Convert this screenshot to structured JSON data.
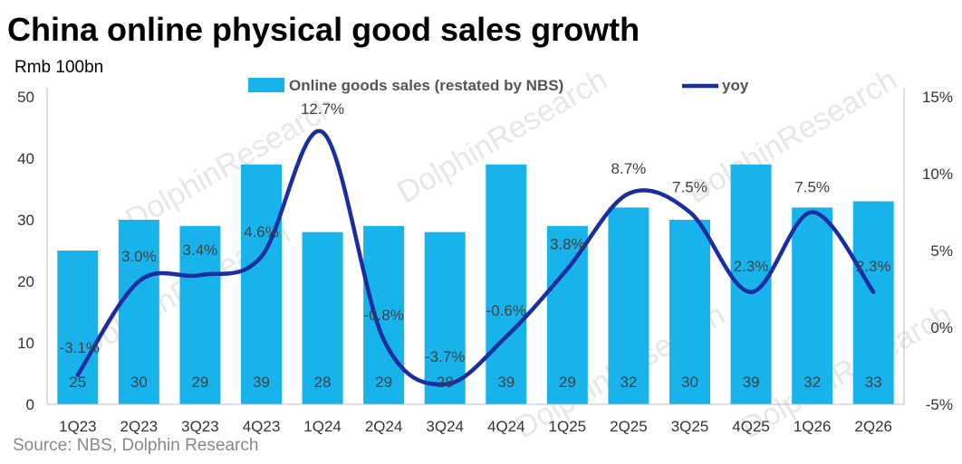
{
  "title": "China online physical good sales growth",
  "source": "Source: NBS, Dolphin Research",
  "watermark": "DolphinResearch",
  "colors": {
    "bar": "#19b3ec",
    "line": "#1a2ea0",
    "axis": "#bfbfbf"
  },
  "chart_data": {
    "type": "bar",
    "title": "China online physical good sales growth",
    "categories": [
      "1Q23",
      "2Q23",
      "3Q23",
      "4Q23",
      "1Q24",
      "2Q24",
      "3Q24",
      "4Q24",
      "1Q25",
      "2Q25",
      "3Q25",
      "4Q25",
      "1Q26",
      "2Q26"
    ],
    "series": [
      {
        "name": "Online goods sales (restated by NBS)",
        "type": "bar",
        "axis": "left",
        "values": [
          25,
          30,
          29,
          39,
          28,
          29,
          28,
          39,
          29,
          32,
          30,
          39,
          32,
          33
        ],
        "labels": [
          "25",
          "30",
          "29",
          "39",
          "28",
          "29",
          "28",
          "39",
          "29",
          "32",
          "30",
          "39",
          "32",
          "33"
        ]
      },
      {
        "name": "yoy",
        "type": "line",
        "axis": "right",
        "values": [
          -3.1,
          3.0,
          3.4,
          4.6,
          12.7,
          -0.8,
          -3.7,
          -0.6,
          3.8,
          8.7,
          7.5,
          2.3,
          7.5,
          2.3
        ],
        "labels": [
          "-3.1%",
          "3.0%",
          "3.4%",
          "4.6%",
          "12.7%",
          "-0.8%",
          "-3.7%",
          "-0.6%",
          "3.8%",
          "8.7%",
          "7.5%",
          "2.3%",
          "7.5%",
          "2.3%"
        ]
      }
    ],
    "y_left": {
      "label": "Rmb 100bn",
      "min": 0,
      "max": 50,
      "ticks": [
        "0",
        "10",
        "20",
        "30",
        "40",
        "50"
      ]
    },
    "y_right": {
      "label": "",
      "min": -5,
      "max": 15,
      "ticks": [
        "-5%",
        "0%",
        "5%",
        "10%",
        "15%"
      ]
    },
    "grid": false,
    "legend": "top-center"
  }
}
